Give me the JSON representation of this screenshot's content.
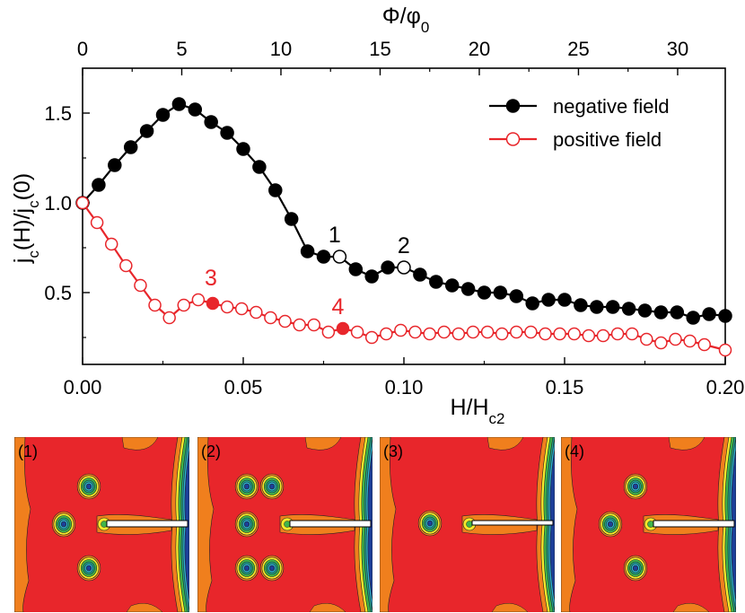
{
  "chart_data": {
    "type": "line",
    "top_axis_label": "Φ/φ0",
    "top_axis_ticks": [
      "0",
      "5",
      "10",
      "15",
      "20",
      "25",
      "30"
    ],
    "top_axis_range": [
      0,
      32.4
    ],
    "xlabel": "H/Hc2",
    "ylabel": "jc(H)/jc(0)",
    "xlim": [
      0,
      0.2
    ],
    "ylim": [
      0.1,
      1.75
    ],
    "x_ticks": [
      "0.00",
      "0.05",
      "0.10",
      "0.15",
      "0.20"
    ],
    "y_ticks": [
      "0.5",
      "1.0",
      "1.5"
    ],
    "legend_position": "top-right",
    "series": [
      {
        "name": "negative field",
        "color": "#000000",
        "marker": "filled-circle",
        "x": [
          0.0,
          0.005,
          0.01,
          0.015,
          0.02,
          0.025,
          0.03,
          0.035,
          0.04,
          0.045,
          0.05,
          0.055,
          0.06,
          0.065,
          0.07,
          0.075,
          0.08,
          0.085,
          0.09,
          0.095,
          0.1,
          0.105,
          0.11,
          0.115,
          0.12,
          0.125,
          0.13,
          0.135,
          0.14,
          0.145,
          0.15,
          0.155,
          0.16,
          0.165,
          0.17,
          0.175,
          0.18,
          0.185,
          0.19,
          0.195,
          0.2
        ],
        "y": [
          1.0,
          1.1,
          1.21,
          1.31,
          1.4,
          1.49,
          1.55,
          1.52,
          1.45,
          1.39,
          1.3,
          1.2,
          1.07,
          0.91,
          0.73,
          0.7,
          0.7,
          0.63,
          0.59,
          0.64,
          0.64,
          0.6,
          0.56,
          0.54,
          0.52,
          0.5,
          0.5,
          0.48,
          0.44,
          0.46,
          0.46,
          0.43,
          0.42,
          0.42,
          0.41,
          0.4,
          0.39,
          0.39,
          0.36,
          0.38,
          0.37
        ]
      },
      {
        "name": "positive field",
        "color": "#e8262b",
        "marker": "open-circle",
        "x": [
          0.0,
          0.0045,
          0.009,
          0.0135,
          0.018,
          0.0225,
          0.027,
          0.0315,
          0.036,
          0.0405,
          0.045,
          0.0495,
          0.054,
          0.0585,
          0.063,
          0.0675,
          0.072,
          0.0765,
          0.081,
          0.0855,
          0.09,
          0.0945,
          0.099,
          0.1035,
          0.108,
          0.1125,
          0.117,
          0.1215,
          0.126,
          0.1305,
          0.135,
          0.1395,
          0.144,
          0.1485,
          0.153,
          0.1575,
          0.162,
          0.1665,
          0.171,
          0.1755,
          0.18,
          0.1845,
          0.189,
          0.1935,
          0.2
        ],
        "y": [
          1.0,
          0.89,
          0.77,
          0.65,
          0.54,
          0.43,
          0.36,
          0.43,
          0.46,
          0.44,
          0.42,
          0.41,
          0.39,
          0.36,
          0.34,
          0.32,
          0.32,
          0.28,
          0.3,
          0.28,
          0.25,
          0.27,
          0.29,
          0.28,
          0.27,
          0.28,
          0.27,
          0.28,
          0.28,
          0.27,
          0.28,
          0.28,
          0.27,
          0.27,
          0.27,
          0.26,
          0.26,
          0.27,
          0.27,
          0.24,
          0.22,
          0.24,
          0.23,
          0.21,
          0.18
        ]
      }
    ],
    "annotations": [
      {
        "text": "1",
        "x": 0.079,
        "y": 0.7,
        "series": "negative field",
        "color": "#000000"
      },
      {
        "text": "2",
        "x": 0.1005,
        "y": 0.64,
        "series": "negative field",
        "color": "#000000"
      },
      {
        "text": "3",
        "x": 0.0405,
        "y": 0.46,
        "series": "positive field",
        "color": "#e8262b"
      },
      {
        "text": "4",
        "x": 0.08,
        "y": 0.3,
        "series": "positive field",
        "color": "#e8262b"
      }
    ]
  },
  "panels": [
    {
      "label": "(1)",
      "vortices": "five",
      "channel": "wide"
    },
    {
      "label": "(2)",
      "vortices": "six",
      "channel": "wide"
    },
    {
      "label": "(3)",
      "vortices": "one",
      "channel": "narrow"
    },
    {
      "label": "(4)",
      "vortices": "four",
      "channel": "wide"
    }
  ],
  "colors": {
    "background_red": "#e8262b",
    "contour_orange": "#f07f1d",
    "contour_yellow": "#f5e92a",
    "contour_green": "#3fb54a",
    "contour_cyan": "#2bb3d8",
    "contour_blue": "#1c3f9a"
  }
}
